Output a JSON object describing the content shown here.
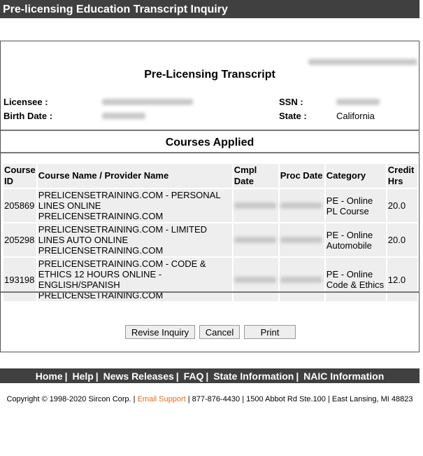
{
  "header": {
    "title": "Pre-licensing Education Transcript Inquiry"
  },
  "transcript": {
    "title": "Pre-Licensing Transcript",
    "licensee_label": "Licensee :",
    "birth_date_label": "Birth Date :",
    "ssn_label": "SSN :",
    "state_label": "State :",
    "state_value": "California"
  },
  "courses": {
    "title": "Courses Applied",
    "headers": [
      "Course ID",
      "Course Name / Provider Name",
      "Cmpl Date",
      "Proc Date",
      "Category",
      "Credit Hrs"
    ],
    "rows": [
      {
        "id": "205869",
        "name": "PRELICENSETRAINING.COM - PERSONAL LINES ONLINE",
        "provider": "PRELICENSETRAINING.COM",
        "category": "PE - Online PL Course",
        "hours": "20.0"
      },
      {
        "id": "205298",
        "name": "PRELICENSETRAINING.COM - LIMITED LINES AUTO ONLINE",
        "provider": "PRELICENSETRAINING.COM",
        "category": "PE - Online Automobile",
        "hours": "20.0"
      },
      {
        "id": "193198",
        "name": "PRELICENSETRAINING.COM - CODE & ETHICS 12 HOURS ONLINE - ENGLISH/SPANISH",
        "provider": "PRELICENSETRAINING.COM",
        "category": "PE - Online Code & Ethics",
        "hours": "12.0"
      }
    ]
  },
  "buttons": {
    "revise": "Revise Inquiry",
    "cancel": "Cancel",
    "print": "Print"
  },
  "footer": {
    "links": [
      "Home",
      "Help",
      "News Releases",
      "FAQ",
      "State Information",
      "NAIC Information"
    ],
    "copyright": "Copyright © 1998-2020 Sircon Corp.",
    "email": "Email Support",
    "phone": "877-876-4430",
    "address": "1500 Abbot Rd Ste.100",
    "city": "East Lansing, MI 48823"
  },
  "colors": {
    "bar": "#404040",
    "link_accent": "#e07020"
  }
}
